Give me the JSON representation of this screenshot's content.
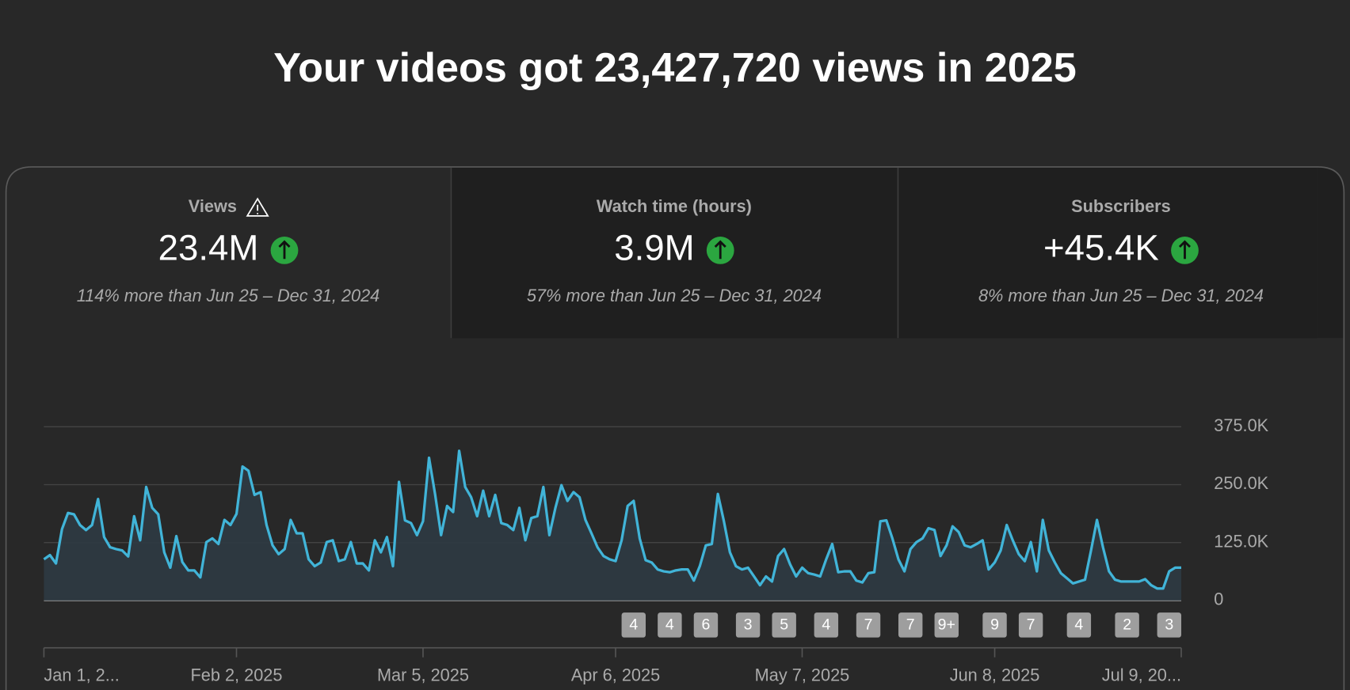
{
  "header": {
    "title": "Your videos got 23,427,720 views in 2025"
  },
  "cards": [
    {
      "label": "Views",
      "value": "23.4M",
      "comparison": "114% more than Jun 25 – Dec 31, 2024"
    },
    {
      "label": "Watch time (hours)",
      "value": "3.9M",
      "comparison": "57% more than Jun 25 – Dec 31, 2024"
    },
    {
      "label": "Subscribers",
      "value": "+45.4K",
      "comparison": "8% more than Jun 25 – Dec 31, 2024"
    }
  ],
  "chart_data": {
    "type": "line",
    "color": "#41b4d8",
    "grid": true,
    "x": [
      0,
      1,
      2,
      3,
      4,
      5,
      6,
      7,
      8,
      9,
      10,
      11,
      12,
      13,
      14,
      15,
      16,
      17,
      18,
      19,
      20,
      21,
      22,
      23,
      24,
      25,
      26,
      27,
      28,
      29,
      30,
      31,
      32,
      33,
      34,
      35,
      36,
      37,
      38,
      39,
      40,
      41,
      42,
      43,
      44,
      45,
      46,
      47,
      48,
      49,
      50,
      51,
      52,
      53,
      54,
      55,
      56,
      57,
      58,
      59,
      60,
      61,
      62,
      63,
      64,
      65,
      66,
      67,
      68,
      69,
      70,
      71,
      72,
      73,
      74,
      75,
      76,
      77,
      78,
      79,
      80,
      81,
      82,
      83,
      84,
      85,
      86,
      87,
      88,
      89,
      90,
      91,
      92,
      93,
      94,
      95,
      96,
      97,
      98,
      99,
      100,
      101,
      102,
      103,
      104,
      105,
      106,
      107,
      108,
      109,
      110,
      111,
      112,
      113,
      114,
      115,
      116,
      117,
      118,
      119,
      120,
      121,
      122,
      123,
      124,
      125,
      126,
      127,
      128,
      129,
      130,
      131,
      132,
      133,
      134,
      135,
      136,
      137,
      138,
      139,
      140,
      141,
      142,
      143,
      144,
      145,
      146,
      147,
      148,
      149,
      150,
      151,
      152,
      153,
      154,
      155,
      156,
      157,
      158,
      159,
      160,
      161,
      162,
      163,
      164,
      165,
      166,
      167,
      168,
      169,
      170,
      171,
      172,
      173,
      174,
      175,
      176,
      177,
      178,
      179,
      180,
      181,
      182,
      183,
      184,
      185,
      186,
      187,
      188,
      189
    ],
    "values": [
      89,
      98,
      80,
      154,
      189,
      186,
      163,
      152,
      163,
      219,
      137,
      115,
      111,
      108,
      95,
      182,
      130,
      245,
      200,
      186,
      104,
      71,
      139,
      83,
      65,
      65,
      50,
      126,
      134,
      122,
      174,
      163,
      187,
      289,
      280,
      228,
      234,
      163,
      119,
      100,
      111,
      174,
      145,
      145,
      89,
      74,
      82,
      126,
      130,
      85,
      89,
      126,
      80,
      80,
      65,
      130,
      104,
      137,
      74,
      256,
      173,
      167,
      141,
      171,
      308,
      230,
      141,
      204,
      191,
      323,
      245,
      223,
      182,
      237,
      182,
      228,
      167,
      163,
      152,
      200,
      130,
      178,
      182,
      245,
      141,
      200,
      249,
      215,
      234,
      223,
      174,
      145,
      115,
      96,
      89,
      85,
      130,
      204,
      215,
      134,
      87,
      82,
      67,
      63,
      61,
      65,
      67,
      67,
      43,
      74,
      119,
      122,
      230,
      171,
      104,
      74,
      67,
      71,
      52,
      33,
      52,
      41,
      96,
      111,
      78,
      52,
      71,
      59,
      56,
      52,
      89,
      122,
      61,
      63,
      63,
      43,
      39,
      59,
      61,
      171,
      173,
      134,
      89,
      63,
      111,
      126,
      134,
      156,
      152,
      96,
      119,
      160,
      148,
      119,
      115,
      122,
      130,
      67,
      82,
      108,
      163,
      130,
      100,
      85,
      126,
      63,
      174,
      108,
      82,
      59,
      48,
      37,
      41,
      45,
      108,
      174,
      115,
      63,
      45,
      41,
      41,
      41,
      41,
      46,
      33,
      26,
      26,
      63,
      71,
      71
    ],
    "xlim": [
      0,
      189
    ],
    "ylim": [
      0,
      375
    ],
    "xticks": [
      {
        "value": 0,
        "label": "Jan 1, 2..."
      },
      {
        "value": 32,
        "label": "Feb 2, 2025"
      },
      {
        "value": 63,
        "label": "Mar 5, 2025"
      },
      {
        "value": 95,
        "label": "Apr 6, 2025"
      },
      {
        "value": 126,
        "label": "May 7, 2025"
      },
      {
        "value": 158,
        "label": "Jun 8, 2025"
      },
      {
        "value": 189,
        "label": "Jul 9, 20..."
      }
    ],
    "yticks": [
      0,
      {
        "value": 125,
        "label": "125.0K"
      },
      {
        "value": 250,
        "label": "250.0K"
      },
      {
        "value": 375,
        "label": "375.0K"
      }
    ],
    "uploads": [
      {
        "x": 98,
        "count": "4"
      },
      {
        "x": 104,
        "count": "4"
      },
      {
        "x": 110,
        "count": "6"
      },
      {
        "x": 117,
        "count": "3"
      },
      {
        "x": 123,
        "count": "5"
      },
      {
        "x": 130,
        "count": "4"
      },
      {
        "x": 137,
        "count": "7"
      },
      {
        "x": 144,
        "count": "7"
      },
      {
        "x": 150,
        "count": "9+"
      },
      {
        "x": 158,
        "count": "9"
      },
      {
        "x": 164,
        "count": "7"
      },
      {
        "x": 172,
        "count": "4"
      },
      {
        "x": 180,
        "count": "2"
      },
      {
        "x": 187,
        "count": "3"
      }
    ]
  }
}
